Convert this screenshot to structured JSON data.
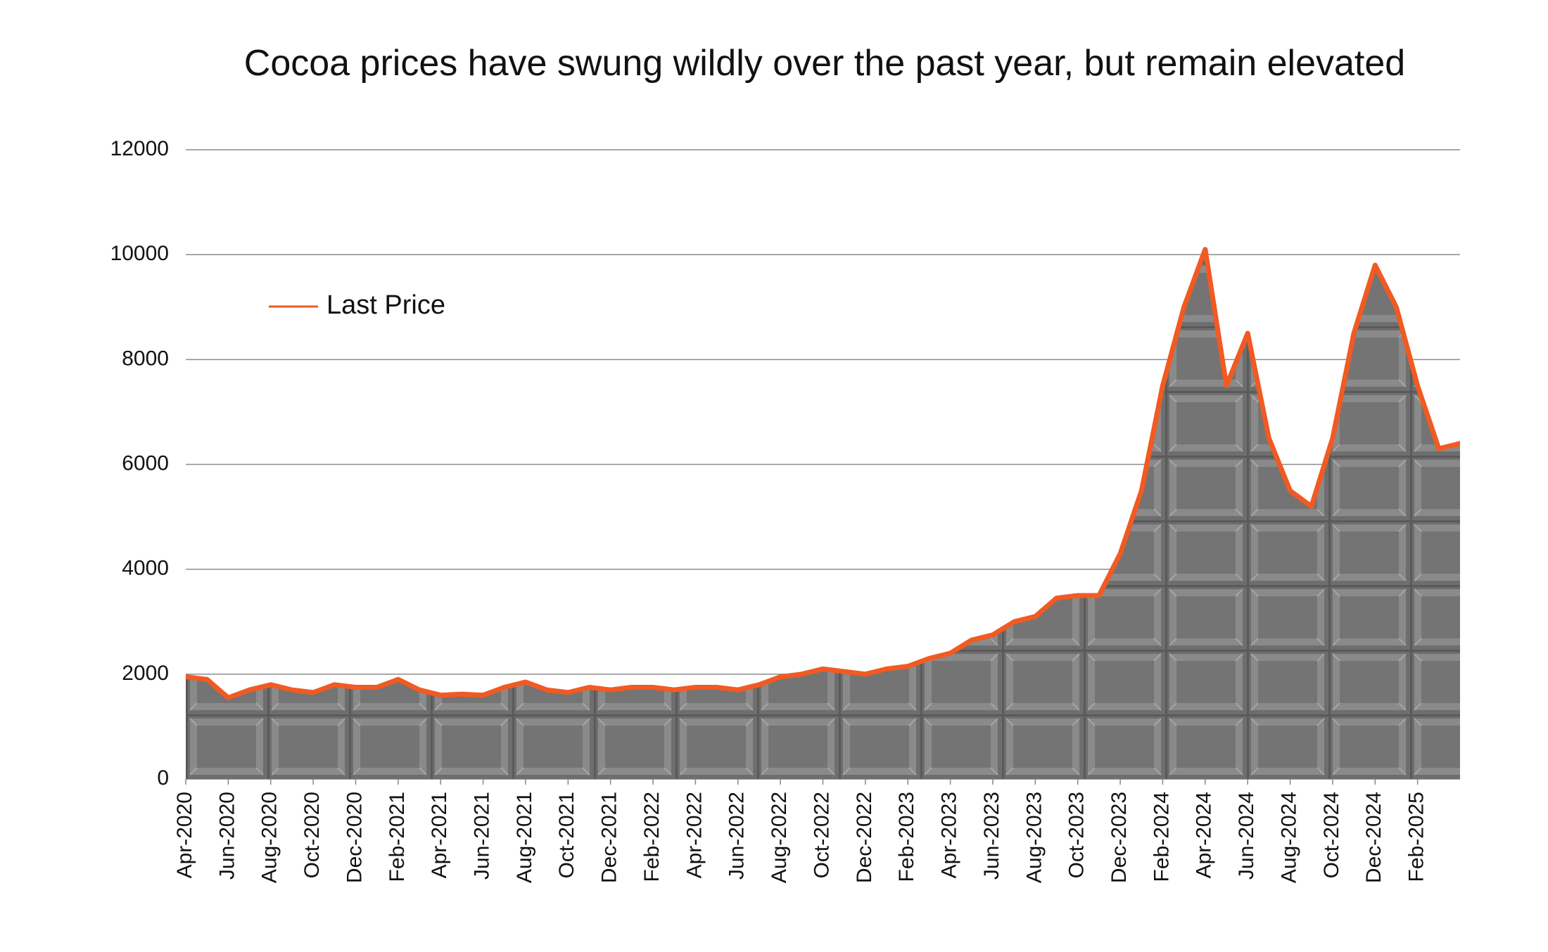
{
  "chart_data": {
    "type": "line",
    "title": "Cocoa prices have swung wildly over the past year, but remain elevated",
    "x": [
      "2020-04",
      "2020-05",
      "2020-06",
      "2020-07",
      "2020-08",
      "2020-09",
      "2020-10",
      "2020-11",
      "2020-12",
      "2021-01",
      "2021-02",
      "2021-03",
      "2021-04",
      "2021-05",
      "2021-06",
      "2021-07",
      "2021-08",
      "2021-09",
      "2021-10",
      "2021-11",
      "2021-12",
      "2022-01",
      "2022-02",
      "2022-03",
      "2022-04",
      "2022-05",
      "2022-06",
      "2022-07",
      "2022-08",
      "2022-09",
      "2022-10",
      "2022-11",
      "2022-12",
      "2023-01",
      "2023-02",
      "2023-03",
      "2023-04",
      "2023-05",
      "2023-06",
      "2023-07",
      "2023-08",
      "2023-09",
      "2023-10",
      "2023-11",
      "2023-12",
      "2024-01",
      "2024-02",
      "2024-03",
      "2024-04",
      "2024-05",
      "2024-06",
      "2024-07",
      "2024-08",
      "2024-09",
      "2024-10",
      "2024-11",
      "2024-12",
      "2025-01",
      "2025-02",
      "2025-03",
      "2025-04"
    ],
    "series": [
      {
        "name": "Last Price",
        "color": "#f15a22",
        "values": [
          1950,
          1900,
          1550,
          1700,
          1800,
          1700,
          1650,
          1800,
          1750,
          1750,
          1900,
          1700,
          1600,
          1620,
          1600,
          1750,
          1850,
          1700,
          1650,
          1750,
          1700,
          1750,
          1750,
          1700,
          1750,
          1750,
          1700,
          1800,
          1950,
          2000,
          2100,
          2050,
          2000,
          2100,
          2150,
          2300,
          2400,
          2650,
          2750,
          3000,
          3100,
          3450,
          3500,
          3500,
          4300,
          5500,
          7500,
          9000,
          10100,
          7500,
          8500,
          6500,
          5500,
          5200,
          6500,
          8500,
          9800,
          9000,
          7500,
          6300,
          6400
        ]
      }
    ],
    "xlim": [
      "2020-04",
      "2025-04"
    ],
    "xticks": [
      {
        "value": "2020-04",
        "label": "Apr-2020"
      },
      {
        "value": "2020-06",
        "label": "Jun-2020"
      },
      {
        "value": "2020-08",
        "label": "Aug-2020"
      },
      {
        "value": "2020-10",
        "label": "Oct-2020"
      },
      {
        "value": "2020-12",
        "label": "Dec-2020"
      },
      {
        "value": "2021-02",
        "label": "Feb-2021"
      },
      {
        "value": "2021-04",
        "label": "Apr-2021"
      },
      {
        "value": "2021-06",
        "label": "Jun-2021"
      },
      {
        "value": "2021-08",
        "label": "Aug-2021"
      },
      {
        "value": "2021-10",
        "label": "Oct-2021"
      },
      {
        "value": "2021-12",
        "label": "Dec-2021"
      },
      {
        "value": "2022-02",
        "label": "Feb-2022"
      },
      {
        "value": "2022-04",
        "label": "Apr-2022"
      },
      {
        "value": "2022-06",
        "label": "Jun-2022"
      },
      {
        "value": "2022-08",
        "label": "Aug-2022"
      },
      {
        "value": "2022-10",
        "label": "Oct-2022"
      },
      {
        "value": "2022-12",
        "label": "Dec-2022"
      },
      {
        "value": "2023-02",
        "label": "Feb-2023"
      },
      {
        "value": "2023-04",
        "label": "Apr-2023"
      },
      {
        "value": "2023-06",
        "label": "Jun-2023"
      },
      {
        "value": "2023-08",
        "label": "Aug-2023"
      },
      {
        "value": "2023-10",
        "label": "Oct-2023"
      },
      {
        "value": "2023-12",
        "label": "Dec-2023"
      },
      {
        "value": "2024-02",
        "label": "Feb-2024"
      },
      {
        "value": "2024-04",
        "label": "Apr-2024"
      },
      {
        "value": "2024-06",
        "label": "Jun-2024"
      },
      {
        "value": "2024-08",
        "label": "Aug-2024"
      },
      {
        "value": "2024-10",
        "label": "Oct-2024"
      },
      {
        "value": "2024-12",
        "label": "Dec-2024"
      },
      {
        "value": "2025-02",
        "label": "Feb-2025"
      }
    ],
    "ylim": [
      0,
      12000
    ],
    "yticks": [
      0,
      2000,
      4000,
      6000,
      8000,
      10000,
      12000
    ],
    "grid": true,
    "legend": "upper-left"
  }
}
